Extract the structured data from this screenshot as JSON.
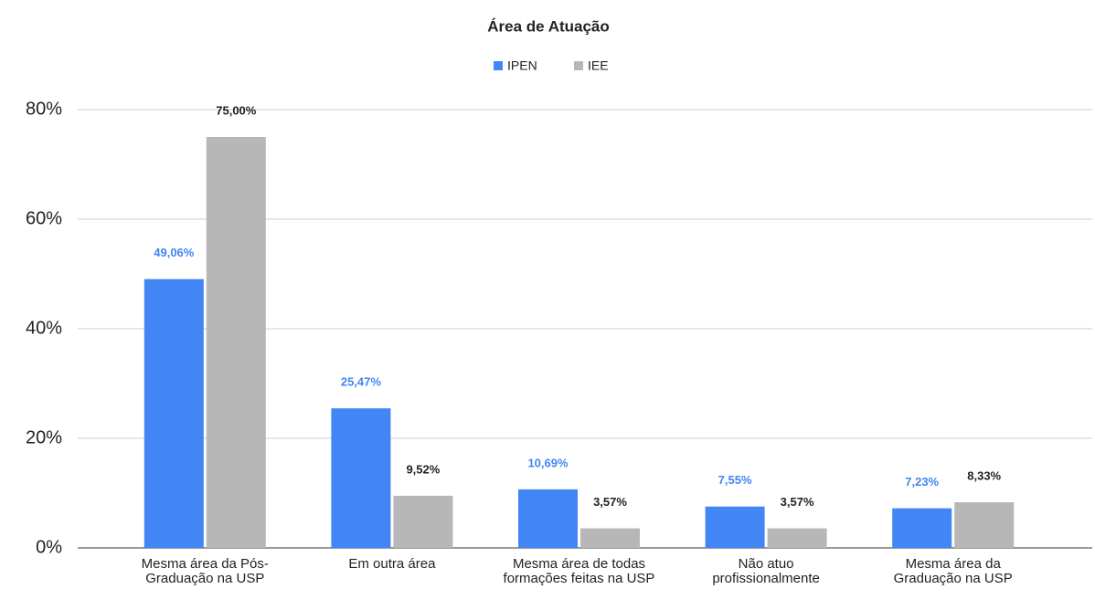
{
  "chart_data": {
    "type": "bar",
    "title": "Área de Atuação",
    "categories": [
      "Mesma área da Pós-Graduação na USP",
      "Em outra área",
      "Mesma área de todas formações feitas na USP",
      "Não atuo profissionalmente",
      "Mesma área da Graduação na USP"
    ],
    "series": [
      {
        "name": "IPEN",
        "color": "#4285f4",
        "label_color": "#4285f4",
        "values": [
          49.06,
          25.47,
          10.69,
          7.55,
          7.23
        ],
        "value_labels": [
          "49,06%",
          "25,47%",
          "10,69%",
          "7,55%",
          "7,23%"
        ]
      },
      {
        "name": "IEE",
        "color": "#b7b7b7",
        "label_color": "#222222",
        "values": [
          75.0,
          9.52,
          3.57,
          3.57,
          8.33
        ],
        "value_labels": [
          "75,00%",
          "9,52%",
          "3,57%",
          "3,57%",
          "8,33%"
        ]
      }
    ],
    "ylim": [
      0,
      80
    ],
    "yticks": [
      {
        "value": 0,
        "label": "0%"
      },
      {
        "value": 20,
        "label": "20%"
      },
      {
        "value": 40,
        "label": "40%"
      },
      {
        "value": 60,
        "label": "60%"
      },
      {
        "value": 80,
        "label": "80%"
      }
    ],
    "grid": true,
    "legend": "top"
  }
}
